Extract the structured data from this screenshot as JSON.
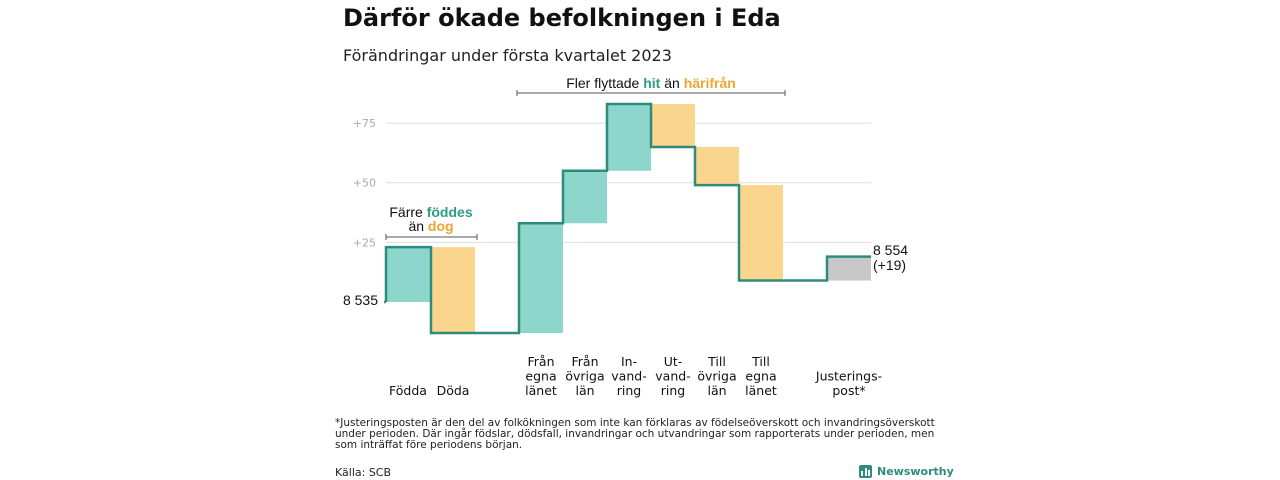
{
  "title": "Därför ökade befolkningen i Eda",
  "subtitle": "Förändringar under första kvartalet 2023",
  "annotations": {
    "top_bracket": {
      "prefix": "Fler flyttade ",
      "word1": "hit",
      "middle": " än ",
      "word2": "härifrån"
    },
    "left_bracket": {
      "line1_prefix": "Färre ",
      "line1_word": "föddes",
      "line2_prefix": "än ",
      "line2_word": "dog"
    }
  },
  "start_label": "8 535",
  "end_label": {
    "value": "8 554",
    "change": "(+19)"
  },
  "footnote": "*Justeringsposten är den del av folkökningen som inte kan förklaras av födelseöverskott och invandringsöverskott under perioden. Där ingår födslar, dödsfall, invandringar och utvandringar som rapporterats under perioden, men som inträffat före periodens början.",
  "source": "Källa: SCB",
  "brand": "Newsworthy",
  "colors": {
    "gain": "#8dd6cb",
    "loss": "#fad58d",
    "adjustment": "#c8c8c8",
    "line": "#2e8c7d",
    "grid": "#dddddd",
    "tick": "#aaaaaa",
    "accent_gain": "#2e9a8a",
    "accent_loss": "#f0a530"
  },
  "chart_data": {
    "type": "bar",
    "subtype": "waterfall",
    "start_value": 8535,
    "end_value": 8554,
    "end_change": "+19",
    "y_ticks": [
      "+25",
      "+50",
      "+75"
    ],
    "tick_values": [
      25,
      50,
      75
    ],
    "ylim": [
      -13,
      83
    ],
    "categories": [
      {
        "label": [
          "Födda"
        ],
        "value": 23,
        "kind": "gain"
      },
      {
        "label": [
          "Döda"
        ],
        "value": -36,
        "kind": "loss"
      },
      {
        "label": [
          "Från",
          "egna",
          "länet"
        ],
        "value": 46,
        "kind": "gain"
      },
      {
        "label": [
          "Från",
          "övriga",
          "län"
        ],
        "value": 22,
        "kind": "gain"
      },
      {
        "label": [
          "In-",
          "vand-",
          "ring"
        ],
        "value": 28,
        "kind": "gain"
      },
      {
        "label": [
          "Ut-",
          "vand-",
          "ring"
        ],
        "value": -18,
        "kind": "loss"
      },
      {
        "label": [
          "Till",
          "övriga",
          "län"
        ],
        "value": -16,
        "kind": "loss"
      },
      {
        "label": [
          "Till",
          "egna",
          "länet"
        ],
        "value": -40,
        "kind": "loss"
      },
      {
        "label": [
          "Justerings-",
          "post*"
        ],
        "value": 10,
        "kind": "adjustment"
      }
    ]
  }
}
